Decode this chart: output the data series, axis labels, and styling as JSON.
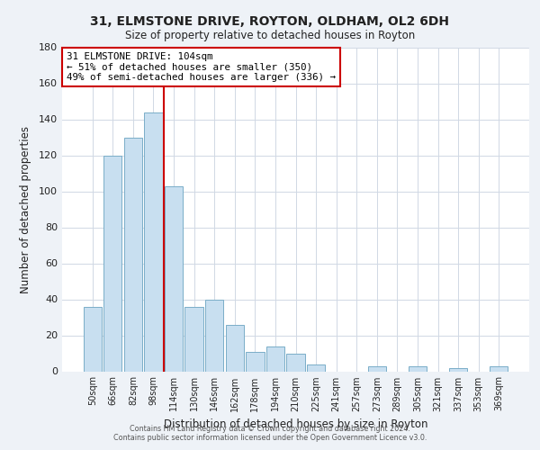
{
  "title": "31, ELMSTONE DRIVE, ROYTON, OLDHAM, OL2 6DH",
  "subtitle": "Size of property relative to detached houses in Royton",
  "xlabel": "Distribution of detached houses by size in Royton",
  "ylabel": "Number of detached properties",
  "bar_labels": [
    "50sqm",
    "66sqm",
    "82sqm",
    "98sqm",
    "114sqm",
    "130sqm",
    "146sqm",
    "162sqm",
    "178sqm",
    "194sqm",
    "210sqm",
    "225sqm",
    "241sqm",
    "257sqm",
    "273sqm",
    "289sqm",
    "305sqm",
    "321sqm",
    "337sqm",
    "353sqm",
    "369sqm"
  ],
  "bar_values": [
    36,
    120,
    130,
    144,
    103,
    36,
    40,
    26,
    11,
    14,
    10,
    4,
    0,
    0,
    3,
    0,
    3,
    0,
    2,
    0,
    3
  ],
  "bar_color": "#c8dff0",
  "bar_edge_color": "#7aadc8",
  "vline_x": 3.5,
  "annotation_title": "31 ELMSTONE DRIVE: 104sqm",
  "annotation_line1": "← 51% of detached houses are smaller (350)",
  "annotation_line2": "49% of semi-detached houses are larger (336) →",
  "annotation_box_color": "#ffffff",
  "annotation_box_edge": "#cc0000",
  "vline_color": "#cc0000",
  "ylim": [
    0,
    180
  ],
  "yticks": [
    0,
    20,
    40,
    60,
    80,
    100,
    120,
    140,
    160,
    180
  ],
  "footer1": "Contains HM Land Registry data © Crown copyright and database right 2024.",
  "footer2": "Contains public sector information licensed under the Open Government Licence v3.0.",
  "background_color": "#eef2f7",
  "plot_background": "#ffffff",
  "grid_color": "#d0d8e4"
}
